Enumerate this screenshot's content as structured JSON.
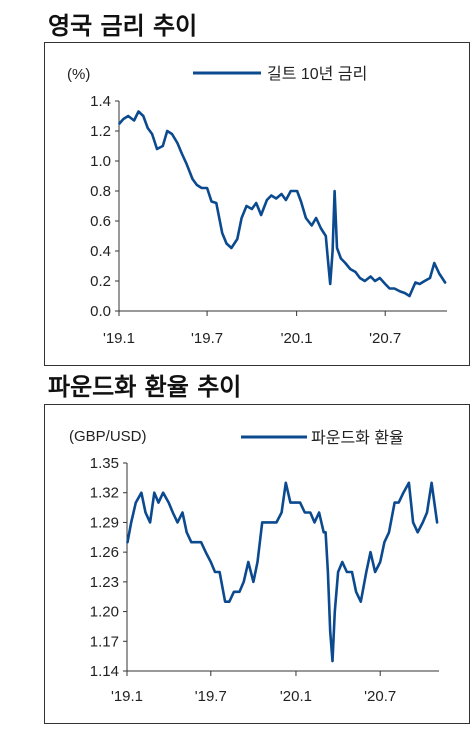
{
  "charts": [
    {
      "title": "영국 금리 추이",
      "chart_data": {
        "type": "line",
        "unit_label": "(%)",
        "series_name": "길트 10년 금리",
        "ylim": [
          0.0,
          1.4
        ],
        "yticks": [
          "0.0",
          "0.2",
          "0.4",
          "0.6",
          "0.8",
          "1.0",
          "1.2",
          "1.4"
        ],
        "xlim": [
          "2019-01-01",
          "2020-11-05"
        ],
        "xticks": [
          {
            "date": "2019-01-01",
            "label": "'19.1"
          },
          {
            "date": "2019-07-01",
            "label": "'19.7"
          },
          {
            "date": "2020-01-01",
            "label": "'20.1"
          },
          {
            "date": "2020-07-01",
            "label": "'20.7"
          }
        ],
        "x": [
          "2019-01-02",
          "2019-01-10",
          "2019-01-20",
          "2019-02-01",
          "2019-02-10",
          "2019-02-20",
          "2019-03-01",
          "2019-03-10",
          "2019-03-20",
          "2019-04-01",
          "2019-04-10",
          "2019-04-20",
          "2019-05-01",
          "2019-05-10",
          "2019-05-20",
          "2019-06-01",
          "2019-06-10",
          "2019-06-20",
          "2019-07-01",
          "2019-07-10",
          "2019-07-20",
          "2019-08-01",
          "2019-08-10",
          "2019-08-20",
          "2019-09-01",
          "2019-09-10",
          "2019-09-20",
          "2019-10-01",
          "2019-10-10",
          "2019-10-20",
          "2019-11-01",
          "2019-11-10",
          "2019-11-20",
          "2019-12-01",
          "2019-12-10",
          "2019-12-20",
          "2020-01-02",
          "2020-01-10",
          "2020-01-20",
          "2020-02-01",
          "2020-02-10",
          "2020-02-20",
          "2020-03-01",
          "2020-03-05",
          "2020-03-10",
          "2020-03-15",
          "2020-03-19",
          "2020-03-24",
          "2020-04-01",
          "2020-04-10",
          "2020-04-20",
          "2020-05-01",
          "2020-05-10",
          "2020-05-20",
          "2020-06-01",
          "2020-06-10",
          "2020-06-20",
          "2020-07-01",
          "2020-07-10",
          "2020-07-20",
          "2020-08-01",
          "2020-08-10",
          "2020-08-20",
          "2020-09-01",
          "2020-09-10",
          "2020-09-20",
          "2020-10-01",
          "2020-10-10",
          "2020-10-20",
          "2020-11-01"
        ],
        "values": [
          1.25,
          1.28,
          1.3,
          1.27,
          1.33,
          1.3,
          1.22,
          1.18,
          1.08,
          1.1,
          1.2,
          1.18,
          1.12,
          1.05,
          0.98,
          0.88,
          0.84,
          0.82,
          0.82,
          0.73,
          0.72,
          0.52,
          0.45,
          0.42,
          0.48,
          0.62,
          0.7,
          0.68,
          0.72,
          0.64,
          0.74,
          0.77,
          0.75,
          0.78,
          0.74,
          0.8,
          0.8,
          0.73,
          0.62,
          0.57,
          0.62,
          0.55,
          0.5,
          0.35,
          0.18,
          0.4,
          0.8,
          0.42,
          0.35,
          0.32,
          0.28,
          0.26,
          0.22,
          0.2,
          0.23,
          0.2,
          0.22,
          0.18,
          0.15,
          0.15,
          0.13,
          0.12,
          0.1,
          0.19,
          0.18,
          0.2,
          0.22,
          0.32,
          0.25,
          0.19
        ]
      }
    },
    {
      "title": "파운드화 환율 추이",
      "chart_data": {
        "type": "line",
        "unit_label": "(GBP/USD)",
        "series_name": "파운드화 환율",
        "ylim": [
          1.14,
          1.35
        ],
        "yticks": [
          "1.14",
          "1.17",
          "1.20",
          "1.23",
          "1.26",
          "1.29",
          "1.32",
          "1.35"
        ],
        "xlim": [
          "2019-01-01",
          "2020-11-05"
        ],
        "xticks": [
          {
            "date": "2019-01-01",
            "label": "'19.1"
          },
          {
            "date": "2019-07-01",
            "label": "'19.7"
          },
          {
            "date": "2020-01-01",
            "label": "'20.1"
          },
          {
            "date": "2020-07-01",
            "label": "'20.7"
          }
        ],
        "x": [
          "2019-01-02",
          "2019-01-10",
          "2019-01-20",
          "2019-02-01",
          "2019-02-10",
          "2019-02-20",
          "2019-03-01",
          "2019-03-10",
          "2019-03-20",
          "2019-04-01",
          "2019-04-10",
          "2019-04-20",
          "2019-05-01",
          "2019-05-10",
          "2019-05-20",
          "2019-06-01",
          "2019-06-10",
          "2019-06-20",
          "2019-07-01",
          "2019-07-10",
          "2019-07-20",
          "2019-08-01",
          "2019-08-10",
          "2019-08-20",
          "2019-09-01",
          "2019-09-10",
          "2019-09-20",
          "2019-10-01",
          "2019-10-10",
          "2019-10-20",
          "2019-11-01",
          "2019-11-10",
          "2019-11-20",
          "2019-12-01",
          "2019-12-10",
          "2019-12-20",
          "2020-01-02",
          "2020-01-10",
          "2020-01-20",
          "2020-02-01",
          "2020-02-10",
          "2020-02-20",
          "2020-03-01",
          "2020-03-05",
          "2020-03-10",
          "2020-03-15",
          "2020-03-20",
          "2020-03-25",
          "2020-04-01",
          "2020-04-10",
          "2020-04-20",
          "2020-05-01",
          "2020-05-10",
          "2020-05-20",
          "2020-06-01",
          "2020-06-10",
          "2020-06-20",
          "2020-07-01",
          "2020-07-10",
          "2020-07-20",
          "2020-08-01",
          "2020-08-10",
          "2020-08-20",
          "2020-09-01",
          "2020-09-10",
          "2020-09-20",
          "2020-10-01",
          "2020-10-10",
          "2020-10-20",
          "2020-11-01"
        ],
        "values": [
          1.27,
          1.29,
          1.31,
          1.32,
          1.3,
          1.29,
          1.32,
          1.31,
          1.32,
          1.31,
          1.3,
          1.29,
          1.3,
          1.28,
          1.27,
          1.27,
          1.27,
          1.26,
          1.25,
          1.24,
          1.24,
          1.21,
          1.21,
          1.22,
          1.22,
          1.23,
          1.25,
          1.23,
          1.25,
          1.29,
          1.29,
          1.29,
          1.29,
          1.3,
          1.33,
          1.31,
          1.31,
          1.31,
          1.3,
          1.3,
          1.29,
          1.3,
          1.28,
          1.28,
          1.24,
          1.18,
          1.15,
          1.2,
          1.24,
          1.25,
          1.24,
          1.24,
          1.22,
          1.21,
          1.24,
          1.26,
          1.24,
          1.25,
          1.27,
          1.28,
          1.31,
          1.31,
          1.32,
          1.33,
          1.29,
          1.28,
          1.29,
          1.3,
          1.33,
          1.29
        ]
      }
    }
  ],
  "style": {
    "line_color": "#0b4a8e",
    "axis_color": "#333333"
  }
}
